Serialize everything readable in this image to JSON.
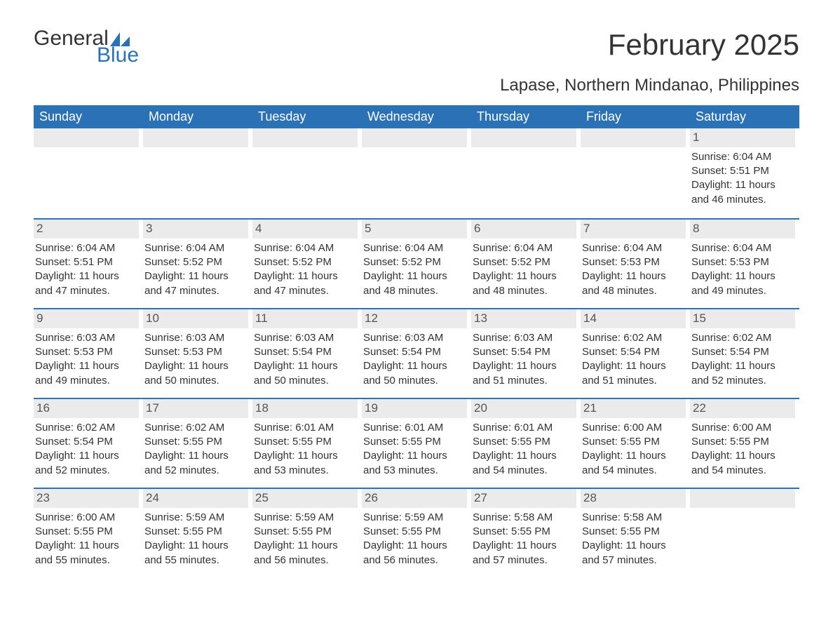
{
  "brand": {
    "word1": "General",
    "word2": "Blue",
    "accent_color": "#2a72b5"
  },
  "title": "February 2025",
  "location": "Lapase, Northern Mindanao, Philippines",
  "colors": {
    "header_bg": "#2a72b5",
    "header_fg": "#ffffff",
    "daynum_bg": "#ebebeb",
    "text": "#333333",
    "rule": "#2a72b5",
    "page_bg": "#ffffff"
  },
  "fonts": {
    "base_family": "Segoe UI, Arial, sans-serif",
    "title_size_pt": 32,
    "location_size_pt": 18,
    "body_size_pt": 11
  },
  "days_of_week": [
    "Sunday",
    "Monday",
    "Tuesday",
    "Wednesday",
    "Thursday",
    "Friday",
    "Saturday"
  ],
  "first_weekday_index": 6,
  "days": [
    {
      "n": 1,
      "sunrise": "6:04 AM",
      "sunset": "5:51 PM",
      "daylight": "11 hours and 46 minutes."
    },
    {
      "n": 2,
      "sunrise": "6:04 AM",
      "sunset": "5:51 PM",
      "daylight": "11 hours and 47 minutes."
    },
    {
      "n": 3,
      "sunrise": "6:04 AM",
      "sunset": "5:52 PM",
      "daylight": "11 hours and 47 minutes."
    },
    {
      "n": 4,
      "sunrise": "6:04 AM",
      "sunset": "5:52 PM",
      "daylight": "11 hours and 47 minutes."
    },
    {
      "n": 5,
      "sunrise": "6:04 AM",
      "sunset": "5:52 PM",
      "daylight": "11 hours and 48 minutes."
    },
    {
      "n": 6,
      "sunrise": "6:04 AM",
      "sunset": "5:52 PM",
      "daylight": "11 hours and 48 minutes."
    },
    {
      "n": 7,
      "sunrise": "6:04 AM",
      "sunset": "5:53 PM",
      "daylight": "11 hours and 48 minutes."
    },
    {
      "n": 8,
      "sunrise": "6:04 AM",
      "sunset": "5:53 PM",
      "daylight": "11 hours and 49 minutes."
    },
    {
      "n": 9,
      "sunrise": "6:03 AM",
      "sunset": "5:53 PM",
      "daylight": "11 hours and 49 minutes."
    },
    {
      "n": 10,
      "sunrise": "6:03 AM",
      "sunset": "5:53 PM",
      "daylight": "11 hours and 50 minutes."
    },
    {
      "n": 11,
      "sunrise": "6:03 AM",
      "sunset": "5:54 PM",
      "daylight": "11 hours and 50 minutes."
    },
    {
      "n": 12,
      "sunrise": "6:03 AM",
      "sunset": "5:54 PM",
      "daylight": "11 hours and 50 minutes."
    },
    {
      "n": 13,
      "sunrise": "6:03 AM",
      "sunset": "5:54 PM",
      "daylight": "11 hours and 51 minutes."
    },
    {
      "n": 14,
      "sunrise": "6:02 AM",
      "sunset": "5:54 PM",
      "daylight": "11 hours and 51 minutes."
    },
    {
      "n": 15,
      "sunrise": "6:02 AM",
      "sunset": "5:54 PM",
      "daylight": "11 hours and 52 minutes."
    },
    {
      "n": 16,
      "sunrise": "6:02 AM",
      "sunset": "5:54 PM",
      "daylight": "11 hours and 52 minutes."
    },
    {
      "n": 17,
      "sunrise": "6:02 AM",
      "sunset": "5:55 PM",
      "daylight": "11 hours and 52 minutes."
    },
    {
      "n": 18,
      "sunrise": "6:01 AM",
      "sunset": "5:55 PM",
      "daylight": "11 hours and 53 minutes."
    },
    {
      "n": 19,
      "sunrise": "6:01 AM",
      "sunset": "5:55 PM",
      "daylight": "11 hours and 53 minutes."
    },
    {
      "n": 20,
      "sunrise": "6:01 AM",
      "sunset": "5:55 PM",
      "daylight": "11 hours and 54 minutes."
    },
    {
      "n": 21,
      "sunrise": "6:00 AM",
      "sunset": "5:55 PM",
      "daylight": "11 hours and 54 minutes."
    },
    {
      "n": 22,
      "sunrise": "6:00 AM",
      "sunset": "5:55 PM",
      "daylight": "11 hours and 54 minutes."
    },
    {
      "n": 23,
      "sunrise": "6:00 AM",
      "sunset": "5:55 PM",
      "daylight": "11 hours and 55 minutes."
    },
    {
      "n": 24,
      "sunrise": "5:59 AM",
      "sunset": "5:55 PM",
      "daylight": "11 hours and 55 minutes."
    },
    {
      "n": 25,
      "sunrise": "5:59 AM",
      "sunset": "5:55 PM",
      "daylight": "11 hours and 56 minutes."
    },
    {
      "n": 26,
      "sunrise": "5:59 AM",
      "sunset": "5:55 PM",
      "daylight": "11 hours and 56 minutes."
    },
    {
      "n": 27,
      "sunrise": "5:58 AM",
      "sunset": "5:55 PM",
      "daylight": "11 hours and 57 minutes."
    },
    {
      "n": 28,
      "sunrise": "5:58 AM",
      "sunset": "5:55 PM",
      "daylight": "11 hours and 57 minutes."
    }
  ],
  "labels": {
    "sunrise": "Sunrise:",
    "sunset": "Sunset:",
    "daylight": "Daylight:"
  }
}
